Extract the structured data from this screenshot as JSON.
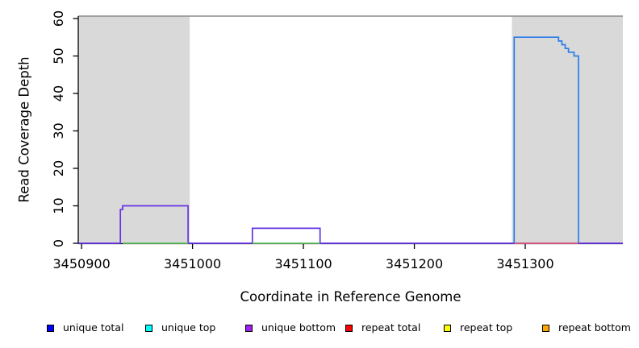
{
  "chart_data": {
    "type": "line",
    "title": "",
    "xlabel": "Coordinate in Reference Genome",
    "ylabel": "Read Coverage Depth",
    "xlim": [
      3450897,
      3451388
    ],
    "ylim": [
      0,
      60
    ],
    "x_ticks": [
      3450900,
      3451000,
      3451100,
      3451200,
      3451300
    ],
    "y_ticks": [
      0,
      10,
      20,
      30,
      40,
      50,
      60
    ],
    "grid": false,
    "top_border_color": "#8C8C8C",
    "axis_color": "#000000",
    "shaded_regions": [
      {
        "name": "repeat-region-left",
        "x0": 3450897,
        "x1": 3450997.5,
        "color": "#D9D9D9"
      },
      {
        "name": "repeat-region-right",
        "x0": 3451288,
        "x1": 3451388,
        "color": "#D9D9D9"
      }
    ],
    "series": [
      {
        "name": "unique-coverage-steps",
        "color": "#6633E6",
        "points": [
          [
            3450897,
            0
          ],
          [
            3450935,
            0
          ],
          [
            3450935,
            9
          ],
          [
            3450937,
            9
          ],
          [
            3450937,
            10
          ],
          [
            3450996,
            10
          ],
          [
            3450996,
            0
          ],
          [
            3451054,
            0
          ],
          [
            3451054,
            4
          ],
          [
            3451115,
            4
          ],
          [
            3451115,
            0
          ],
          [
            3451388,
            0
          ]
        ]
      },
      {
        "name": "unique-top-baseline-1",
        "color": "#5FBF5F",
        "points": [
          [
            3450937,
            0
          ],
          [
            3450996,
            0
          ]
        ]
      },
      {
        "name": "unique-top-baseline-2",
        "color": "#5FBF5F",
        "points": [
          [
            3451054,
            0
          ],
          [
            3451115,
            0
          ]
        ]
      },
      {
        "name": "repeat-total-baseline",
        "color": "#E25B76",
        "points": [
          [
            3451290,
            0
          ],
          [
            3451348,
            0
          ]
        ]
      },
      {
        "name": "unique-total-peak",
        "color": "#2B7CE9",
        "points": [
          [
            3451290,
            0
          ],
          [
            3451290,
            55
          ],
          [
            3451330,
            55
          ],
          [
            3451330,
            54
          ],
          [
            3451333,
            54
          ],
          [
            3451333,
            53
          ],
          [
            3451336,
            53
          ],
          [
            3451336,
            52
          ],
          [
            3451339,
            52
          ],
          [
            3451339,
            51
          ],
          [
            3451344,
            51
          ],
          [
            3451344,
            50
          ],
          [
            3451348,
            50
          ],
          [
            3451348,
            0
          ]
        ]
      }
    ],
    "legend_position": "bottom"
  },
  "legend": {
    "items": [
      {
        "label": "unique total",
        "color": "#0000FF"
      },
      {
        "label": "unique top",
        "color": "#00FFFF"
      },
      {
        "label": "unique bottom",
        "color": "#A020F0"
      },
      {
        "label": "repeat total",
        "color": "#FF0000"
      },
      {
        "label": "repeat top",
        "color": "#FFFF00"
      },
      {
        "label": "repeat bottom",
        "color": "#FFA500"
      }
    ]
  }
}
